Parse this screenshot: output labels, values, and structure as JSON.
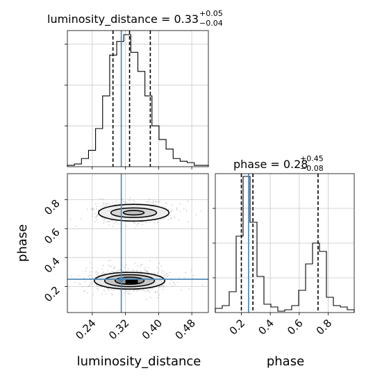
{
  "chart_data": {
    "type": "corner",
    "parameters": [
      "luminosity_distance",
      "phase"
    ],
    "colors": {
      "truth": "#4682b4",
      "hist": "#000000",
      "grid": "#c8c8c8",
      "scatter": "#9a9a9a"
    },
    "panels": {
      "luminosity_distance": {
        "title_main": "luminosity_distance = 0.33",
        "title_sup": "+0.05",
        "title_sub": "−0.04",
        "xlim": [
          0.18,
          0.52
        ],
        "ylim": [
          0,
          1.0
        ],
        "bin_edges": [
          0.18,
          0.197,
          0.214,
          0.231,
          0.248,
          0.265,
          0.282,
          0.299,
          0.316,
          0.333,
          0.35,
          0.367,
          0.384,
          0.401,
          0.418,
          0.435,
          0.452,
          0.469,
          0.486,
          0.503,
          0.52
        ],
        "counts": [
          0.01,
          0.02,
          0.06,
          0.12,
          0.28,
          0.52,
          0.82,
          0.92,
          0.97,
          0.84,
          0.7,
          0.52,
          0.3,
          0.2,
          0.13,
          0.06,
          0.04,
          0.03,
          0.01,
          0.01
        ],
        "quantiles": [
          0.29,
          0.33,
          0.38
        ],
        "truth": 0.31
      },
      "phase": {
        "title_main": "phase = 0.28",
        "title_sup": "+0.45",
        "title_sub": "−0.08",
        "xlim": [
          0.02,
          0.98
        ],
        "ylim": [
          0,
          1.0
        ],
        "bin_edges": [
          0.02,
          0.068,
          0.116,
          0.164,
          0.212,
          0.26,
          0.308,
          0.356,
          0.404,
          0.452,
          0.5,
          0.548,
          0.596,
          0.644,
          0.692,
          0.74,
          0.788,
          0.836,
          0.884,
          0.932,
          0.98
        ],
        "counts": [
          0.03,
          0.05,
          0.15,
          0.55,
          0.98,
          0.65,
          0.26,
          0.06,
          0.04,
          0.01,
          0.02,
          0.05,
          0.16,
          0.35,
          0.5,
          0.44,
          0.11,
          0.05,
          0.04,
          0.02
        ],
        "quantiles": [
          0.2,
          0.28,
          0.73
        ],
        "truth": 0.25
      }
    },
    "joint": {
      "x_param": "luminosity_distance",
      "y_param": "phase",
      "xlim": [
        0.18,
        0.52
      ],
      "ylim": [
        0.02,
        0.98
      ],
      "truth": [
        0.31,
        0.25
      ],
      "modes": [
        {
          "center": [
            0.33,
            0.24
          ],
          "sigma": [
            0.05,
            0.055
          ],
          "weight": 0.6
        },
        {
          "center": [
            0.34,
            0.71
          ],
          "sigma": [
            0.05,
            0.05
          ],
          "weight": 0.4
        }
      ],
      "contour_levels": [
        {
          "mode": 0,
          "rx": 0.085,
          "ry": 0.105,
          "fill": "#e6e6e6"
        },
        {
          "mode": 0,
          "rx": 0.06,
          "ry": 0.075,
          "fill": "#c2c2c2"
        },
        {
          "mode": 0,
          "rx": 0.035,
          "ry": 0.045,
          "fill": "#8c8c8c"
        },
        {
          "mode": 1,
          "rx": 0.085,
          "ry": 0.105,
          "fill": "#ececec"
        },
        {
          "mode": 1,
          "rx": 0.055,
          "ry": 0.06,
          "fill": "#d2d2d2"
        },
        {
          "mode": 1,
          "rx": 0.025,
          "ry": 0.028,
          "fill": "#bdbdbd"
        }
      ],
      "dense_core": {
        "x": [
          0.32,
          0.35
        ],
        "y": [
          0.22,
          0.25
        ]
      }
    },
    "ticks": {
      "luminosity_distance": {
        "values": [
          0.24,
          0.32,
          0.4,
          0.48
        ],
        "labels": [
          "0.24",
          "0.32",
          "0.40",
          "0.48"
        ]
      },
      "phase": {
        "values": [
          0.2,
          0.4,
          0.6,
          0.8
        ],
        "labels": [
          "0.2",
          "0.4",
          "0.6",
          "0.8"
        ]
      }
    },
    "axis_labels": {
      "x_left": "luminosity_distance",
      "x_right": "phase",
      "y_left": "phase"
    }
  }
}
